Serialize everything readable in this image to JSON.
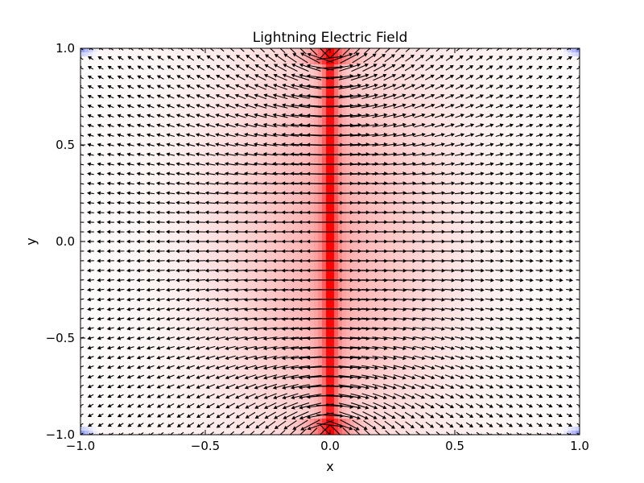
{
  "chart_data": {
    "type": "heatmap",
    "title": "Lightning Electric Field",
    "xlabel": "x",
    "ylabel": "y",
    "xlim": [
      -1.0,
      1.0
    ],
    "ylim": [
      -1.0,
      1.0
    ],
    "x_ticks": [
      {
        "value": -1.0,
        "label": "−1.0"
      },
      {
        "value": -0.5,
        "label": "−0.5"
      },
      {
        "value": 0.0,
        "label": "0.0"
      },
      {
        "value": 0.5,
        "label": "0.5"
      },
      {
        "value": 1.0,
        "label": "1.0"
      }
    ],
    "y_ticks": [
      {
        "value": -1.0,
        "label": "−1.0"
      },
      {
        "value": -0.5,
        "label": "−0.5"
      },
      {
        "value": 0.0,
        "label": "0.0"
      },
      {
        "value": 0.5,
        "label": "0.5"
      },
      {
        "value": 1.0,
        "label": "1.0"
      }
    ],
    "field": {
      "source": "vertical line charge along x = 0",
      "line_x": 0.0,
      "line_y_range": [
        -1.0,
        1.0
      ],
      "colormap": "bwr",
      "positive_color": "#ff0000",
      "negative_color": "#0000ff",
      "grid_x": 50,
      "grid_y": 40
    },
    "quiver": {
      "color": "#000000",
      "grid_x": 50,
      "grid_y": 40
    },
    "grid": false,
    "legend": "none"
  }
}
